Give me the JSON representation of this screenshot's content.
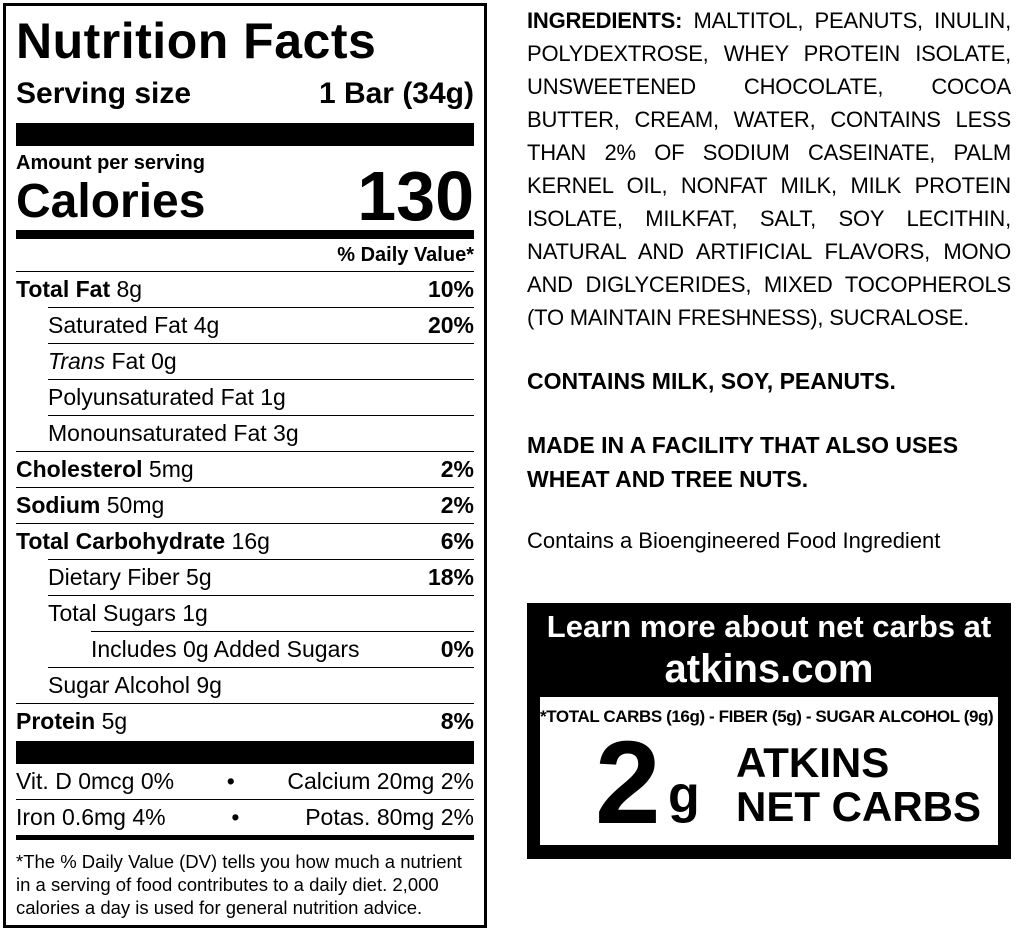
{
  "nutrition_facts": {
    "title": "Nutrition Facts",
    "serving_label": "Serving size",
    "serving_value": "1 Bar (34g)",
    "amount_per_serving": "Amount per serving",
    "calories_label": "Calories",
    "calories_value": "130",
    "dv_header": "% Daily Value*",
    "rows": [
      {
        "name": "Total Fat",
        "amount": "8g",
        "dv": "10%"
      },
      {
        "name": "Saturated Fat 4g",
        "dv": "20%"
      },
      {
        "name": "Trans",
        "amount": "Fat 0g"
      },
      {
        "name": "Polyunsaturated Fat 1g"
      },
      {
        "name": "Monounsaturated Fat 3g"
      },
      {
        "name": "Cholesterol",
        "amount": "5mg",
        "dv": "2%"
      },
      {
        "name": "Sodium",
        "amount": "50mg",
        "dv": "2%"
      },
      {
        "name": "Total Carbohydrate",
        "amount": "16g",
        "dv": "6%"
      },
      {
        "name": "Dietary Fiber 5g",
        "dv": "18%"
      },
      {
        "name": "Total Sugars 1g"
      },
      {
        "name": "Includes 0g Added Sugars",
        "dv": "0%"
      },
      {
        "name": "Sugar Alcohol 9g"
      },
      {
        "name": "Protein",
        "amount": "5g",
        "dv": "8%"
      }
    ],
    "micronutrients": [
      [
        "Vit. D 0mcg 0%",
        "Calcium 20mg 2%"
      ],
      [
        "Iron 0.6mg 4%",
        "Potas. 80mg 2%"
      ]
    ],
    "footnote": "*The % Daily Value (DV) tells you how much a nutrient in a serving of food contributes to a daily diet. 2,000 calories a day is used for general nutrition advice."
  },
  "ingredients": {
    "label": "INGREDIENTS:",
    "text": "MALTITOL, PEANUTS, INULIN, POLYDEXTROSE, WHEY PROTEIN ISOLATE, UNSWEETENED CHOCOLATE, COCOA BUTTER, CREAM, WATER, CONTAINS LESS THAN 2% OF SODIUM CASEINATE, PALM KERNEL OIL, NONFAT MILK, MILK PROTEIN ISOLATE, MILKFAT, SALT, SOY LECITHIN, NATURAL AND ARTIFICIAL FLAVORS, MONO AND DIGLYCERIDES, MIXED TOCOPHEROLS (TO MAINTAIN FRESHNESS), SUCRALOSE.",
    "contains": "CONTAINS MILK, SOY, PEANUTS.",
    "facility": "MADE IN A FACILITY THAT ALSO USES WHEAT AND TREE NUTS.",
    "bioengineered": "Contains a Bioengineered Food Ingredient"
  },
  "net_carbs_box": {
    "heading": "Learn more about net carbs at",
    "website": "atkins.com",
    "formula": "*TOTAL CARBS (16g) - FIBER (5g) - SUGAR ALCOHOL (9g) =",
    "number": "2",
    "unit": "g",
    "label_line1": "ATKINS",
    "label_line2": "NET CARBS"
  }
}
